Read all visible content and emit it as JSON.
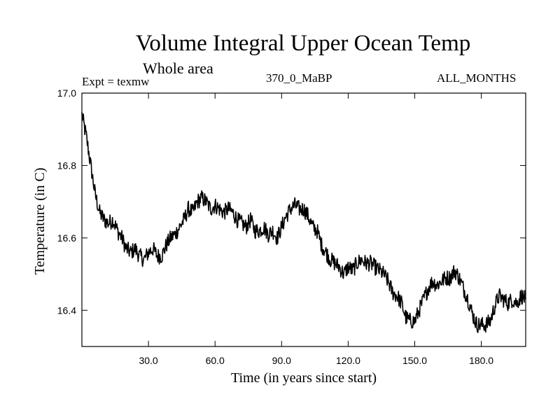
{
  "chart_data": {
    "type": "line",
    "title": "Volume Integral Upper Ocean Temp",
    "subtitle": "Whole area",
    "annotations": {
      "experiment": "Expt = texmw",
      "run": "370_0_MaBP",
      "months": "ALL_MONTHS"
    },
    "xlabel": "Time (in years since start)",
    "ylabel": "Temperature (in C)",
    "xlim": [
      0,
      200
    ],
    "ylim": [
      16.3,
      17.0
    ],
    "x_ticks": [
      30,
      60,
      90,
      120,
      150,
      180
    ],
    "x_tick_labels": [
      "30.0",
      "60.0",
      "90.0",
      "120.0",
      "150.0",
      "180.0"
    ],
    "y_ticks": [
      16.4,
      16.6,
      16.8,
      17.0
    ],
    "y_tick_labels": [
      "16.4",
      "16.6",
      "16.8",
      "17.0"
    ],
    "series": [
      {
        "name": "Volume Integral Upper Ocean Temp",
        "color": "#000000",
        "x": [
          0,
          2,
          4,
          6,
          8,
          10,
          12,
          14,
          16,
          18,
          20,
          22,
          24,
          26,
          28,
          30,
          32,
          34,
          36,
          38,
          40,
          42,
          44,
          46,
          48,
          50,
          52,
          54,
          56,
          58,
          60,
          62,
          64,
          66,
          68,
          70,
          72,
          74,
          76,
          78,
          80,
          82,
          84,
          86,
          88,
          90,
          92,
          94,
          96,
          98,
          100,
          102,
          104,
          106,
          108,
          110,
          112,
          114,
          116,
          118,
          120,
          122,
          124,
          126,
          128,
          130,
          132,
          134,
          136,
          138,
          140,
          142,
          144,
          146,
          148,
          150,
          152,
          154,
          156,
          158,
          160,
          162,
          164,
          166,
          168,
          170,
          172,
          174,
          176,
          178,
          180,
          182,
          184,
          186,
          188,
          190,
          192,
          194,
          196,
          198,
          200
        ],
        "values": [
          16.94,
          16.88,
          16.8,
          16.72,
          16.67,
          16.65,
          16.64,
          16.65,
          16.62,
          16.6,
          16.57,
          16.56,
          16.57,
          16.55,
          16.54,
          16.56,
          16.57,
          16.55,
          16.55,
          16.58,
          16.6,
          16.61,
          16.63,
          16.65,
          16.68,
          16.67,
          16.7,
          16.71,
          16.7,
          16.68,
          16.69,
          16.68,
          16.67,
          16.68,
          16.67,
          16.65,
          16.64,
          16.63,
          16.65,
          16.62,
          16.62,
          16.63,
          16.61,
          16.62,
          16.6,
          16.63,
          16.66,
          16.68,
          16.69,
          16.68,
          16.68,
          16.66,
          16.63,
          16.62,
          16.58,
          16.56,
          16.54,
          16.53,
          16.52,
          16.5,
          16.52,
          16.51,
          16.53,
          16.54,
          16.53,
          16.53,
          16.52,
          16.51,
          16.5,
          16.48,
          16.45,
          16.44,
          16.42,
          16.38,
          16.37,
          16.37,
          16.4,
          16.43,
          16.46,
          16.48,
          16.47,
          16.48,
          16.49,
          16.49,
          16.51,
          16.49,
          16.46,
          16.43,
          16.39,
          16.36,
          16.36,
          16.36,
          16.37,
          16.41,
          16.44,
          16.43,
          16.42,
          16.43,
          16.42,
          16.44,
          16.43
        ]
      }
    ]
  }
}
